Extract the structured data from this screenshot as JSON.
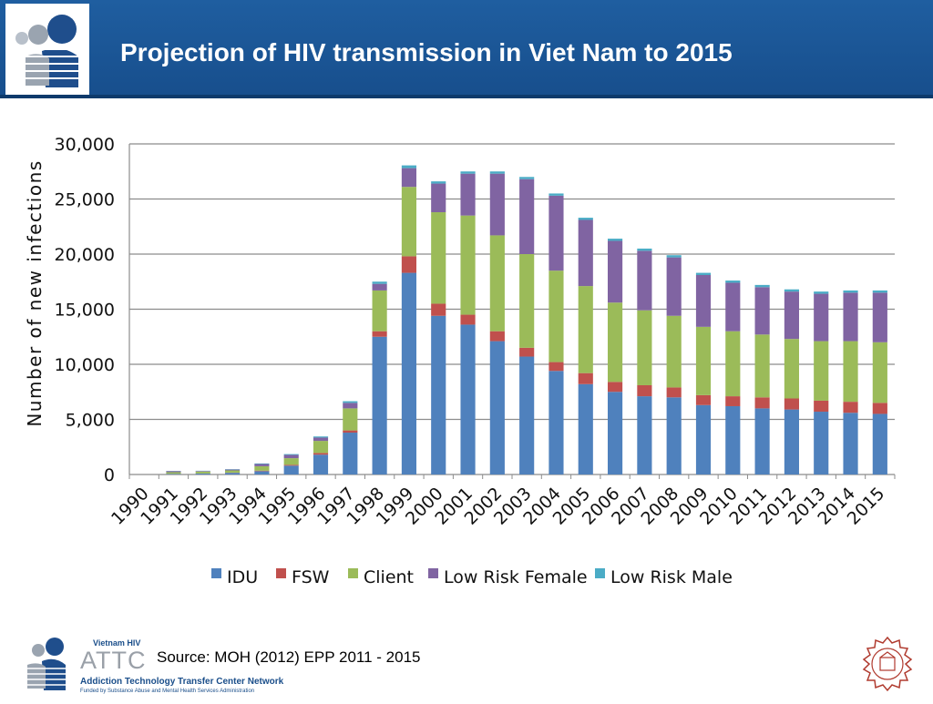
{
  "header": {
    "title": "Projection of HIV transmission in Viet Nam to 2015"
  },
  "footer": {
    "source": "Source: MOH (2012) EPP 2011 - 2015",
    "logo_small": "Vietnam HIV",
    "logo_name": "ATTC",
    "logo_network": "Addiction Technology Transfer Center Network",
    "logo_funding": "Funded by Substance Abuse and Mental Health Services Administration"
  },
  "chart_data": {
    "type": "bar",
    "stacked": true,
    "title": "",
    "xlabel": "",
    "ylabel": "Number of new infections",
    "ylim": [
      0,
      30000
    ],
    "yticks": [
      0,
      5000,
      10000,
      15000,
      20000,
      25000,
      30000
    ],
    "ytick_labels": [
      "0",
      "5,000",
      "10,000",
      "15,000",
      "20,000",
      "25,000",
      "30,000"
    ],
    "grid": true,
    "legend": "bottom",
    "categories": [
      "1990",
      "1991",
      "1992",
      "1993",
      "1994",
      "1995",
      "1996",
      "1997",
      "1998",
      "1999",
      "2000",
      "2001",
      "2002",
      "2003",
      "2004",
      "2005",
      "2006",
      "2007",
      "2008",
      "2009",
      "2010",
      "2011",
      "2012",
      "2013",
      "2014",
      "2015"
    ],
    "series": [
      {
        "name": "IDU",
        "color": "#4f81bd",
        "values": [
          0,
          50,
          80,
          150,
          300,
          800,
          1800,
          3800,
          12500,
          18300,
          14400,
          13600,
          12100,
          10700,
          9400,
          8200,
          7500,
          7100,
          7000,
          6300,
          6200,
          6000,
          5900,
          5700,
          5600,
          5500
        ]
      },
      {
        "name": "FSW",
        "color": "#c0504d",
        "values": [
          0,
          10,
          10,
          20,
          50,
          80,
          150,
          200,
          500,
          1500,
          1100,
          900,
          900,
          800,
          800,
          1000,
          900,
          1000,
          900,
          900,
          900,
          1000,
          1000,
          1000,
          1000,
          1000
        ]
      },
      {
        "name": "Client",
        "color": "#9bbb59",
        "values": [
          0,
          150,
          180,
          200,
          400,
          600,
          1100,
          2000,
          3700,
          6300,
          8300,
          9000,
          8700,
          8500,
          8300,
          7900,
          7200,
          6800,
          6500,
          6200,
          5900,
          5700,
          5400,
          5400,
          5500,
          5500
        ]
      },
      {
        "name": "Low Risk Female",
        "color": "#8064a2",
        "values": [
          0,
          100,
          50,
          80,
          200,
          300,
          300,
          500,
          600,
          1700,
          2600,
          3800,
          5600,
          6800,
          6800,
          6000,
          5600,
          5400,
          5300,
          4700,
          4400,
          4300,
          4300,
          4300,
          4400,
          4500
        ]
      },
      {
        "name": "Low Risk Male",
        "color": "#4bacc6",
        "values": [
          0,
          20,
          20,
          30,
          50,
          70,
          100,
          150,
          200,
          250,
          200,
          200,
          200,
          200,
          200,
          200,
          200,
          200,
          200,
          200,
          200,
          200,
          200,
          200,
          200,
          200
        ]
      }
    ]
  }
}
